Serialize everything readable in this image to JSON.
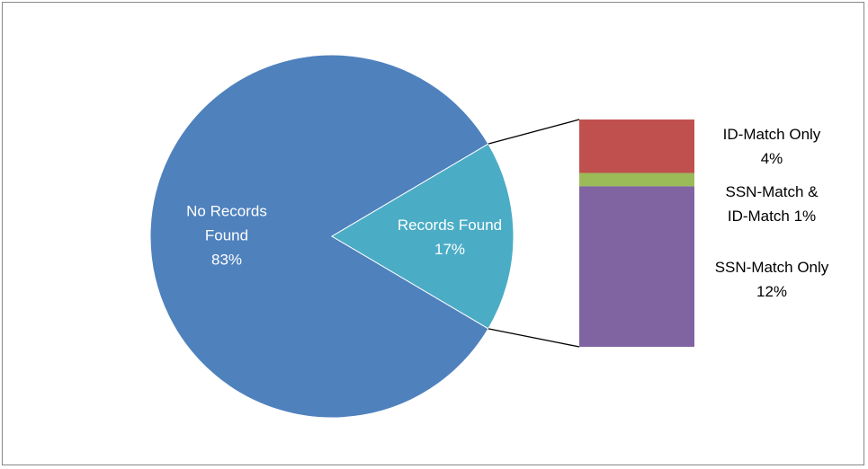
{
  "chart_data": {
    "type": "pie-of-bar",
    "categories": [
      "No Records Found",
      "Records Found"
    ],
    "values": [
      83,
      17
    ],
    "value_labels": [
      "83%",
      "17%"
    ],
    "colors": [
      "#4f81bd",
      "#4bacc6"
    ],
    "breakdown": {
      "categories": [
        "ID-Match Only",
        "SSN-Match & ID-Match",
        "SSN-Match Only"
      ],
      "values": [
        4,
        1,
        12
      ],
      "value_labels": [
        "4%",
        "1%",
        "12%"
      ],
      "colors": [
        "#c0504d",
        "#9bbb59",
        "#8064a2"
      ]
    }
  }
}
